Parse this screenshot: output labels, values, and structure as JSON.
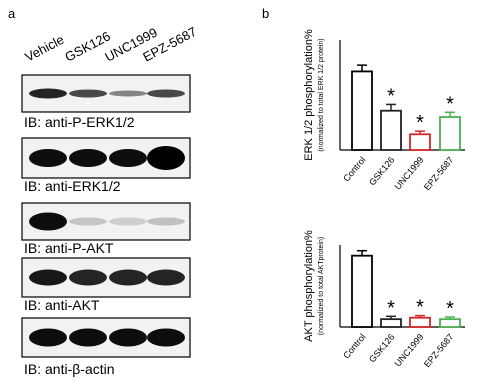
{
  "panel_a": {
    "label": "a",
    "lanes": [
      "Vehicle",
      "GSK126",
      "UNC1999",
      "EPZ-5687"
    ],
    "blots": [
      "IB: anti-P-ERK1/2",
      "IB: anti-ERK1/2",
      "IB: anti-P-AKT",
      "IB: anti-AKT",
      "IB: anti-β-actin"
    ]
  },
  "panel_b": {
    "label": "b"
  },
  "chart_data": [
    {
      "type": "bar",
      "y_label": "ERK 1/2 phosphorylation%",
      "y_sublabel": "(normalized to total ERK 1/2 protein)",
      "categories": [
        "Control",
        "GSK126",
        "UNC1999",
        "EPZ-5687"
      ],
      "values": [
        100,
        50,
        20,
        42
      ],
      "errors": [
        8,
        8,
        4,
        6
      ],
      "significance": [
        null,
        "*",
        "*",
        "*"
      ],
      "colors": [
        "#000000",
        "#222222",
        "#d62728",
        "#4caf50"
      ],
      "ylim": [
        0,
        140
      ]
    },
    {
      "type": "bar",
      "y_label": "AKT phosphorylation%",
      "y_sublabel": "(normalized to total AKTprotein)",
      "categories": [
        "Control",
        "GSK126",
        "UNC1999",
        "EPZ-5687"
      ],
      "values": [
        100,
        11,
        13,
        11
      ],
      "errors": [
        7,
        4,
        3,
        3
      ],
      "significance": [
        null,
        "*",
        "*",
        "*"
      ],
      "colors": [
        "#000000",
        "#222222",
        "#d62728",
        "#4caf50"
      ],
      "ylim": [
        0,
        115
      ]
    }
  ]
}
